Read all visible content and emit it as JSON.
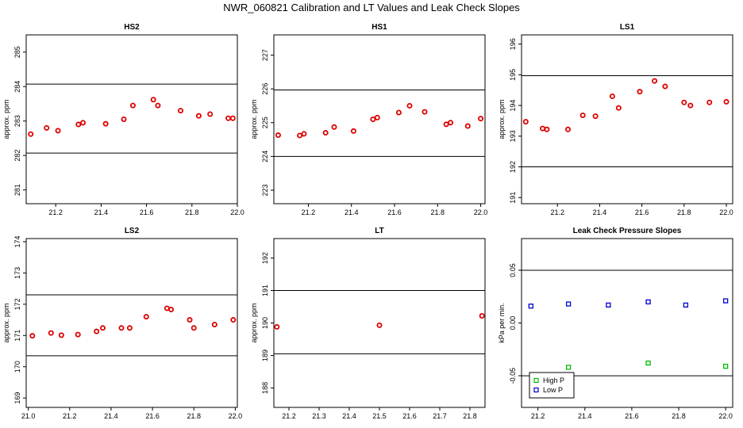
{
  "title": "NWR_060821  Calibration and LT Values and Leak Check Slopes",
  "chart_data": [
    {
      "type": "scatter",
      "title": "HS2",
      "ylabel": "approx. ppm",
      "xlim": [
        21.07,
        22.0
      ],
      "ylim": [
        280.6,
        285.5
      ],
      "xticks": [
        "21.2",
        "21.4",
        "21.6",
        "21.8",
        "22.0"
      ],
      "yticks": [
        "281",
        "282",
        "283",
        "284",
        "285"
      ],
      "hlines": [
        282.07,
        284.07
      ],
      "series": [
        {
          "color": "#dd0000",
          "symbol": "circle",
          "x": [
            21.09,
            21.16,
            21.21,
            21.3,
            21.32,
            21.42,
            21.5,
            21.54,
            21.63,
            21.65,
            21.75,
            21.83,
            21.88,
            21.96,
            21.98
          ],
          "y": [
            282.62,
            282.8,
            282.72,
            282.9,
            282.95,
            282.92,
            283.05,
            283.45,
            283.62,
            283.45,
            283.3,
            283.15,
            283.2,
            283.08,
            283.08
          ]
        }
      ]
    },
    {
      "type": "scatter",
      "title": "HS1",
      "ylabel": "approx. ppm",
      "xlim": [
        21.04,
        22.02
      ],
      "ylim": [
        222.6,
        227.6
      ],
      "xticks": [
        "21.2",
        "21.4",
        "21.6",
        "21.8",
        "22.0"
      ],
      "yticks": [
        "223",
        "224",
        "225",
        "226",
        "227"
      ],
      "hlines": [
        224.0,
        225.97
      ],
      "series": [
        {
          "color": "#dd0000",
          "symbol": "circle",
          "x": [
            21.06,
            21.16,
            21.18,
            21.28,
            21.32,
            21.41,
            21.5,
            21.52,
            21.62,
            21.67,
            21.74,
            21.84,
            21.86,
            21.94,
            22.0
          ],
          "y": [
            224.63,
            224.62,
            224.67,
            224.7,
            224.87,
            224.75,
            225.1,
            225.15,
            225.3,
            225.5,
            225.32,
            224.95,
            225.0,
            224.9,
            225.12
          ]
        }
      ]
    },
    {
      "type": "scatter",
      "title": "LS1",
      "ylabel": "approx. ppm",
      "xlim": [
        21.03,
        22.03
      ],
      "ylim": [
        190.8,
        196.3
      ],
      "xticks": [
        "21.2",
        "21.4",
        "21.6",
        "21.8",
        "22.0"
      ],
      "yticks": [
        "191",
        "192",
        "193",
        "194",
        "195",
        "196"
      ],
      "hlines": [
        192.0,
        194.97
      ],
      "series": [
        {
          "color": "#dd0000",
          "symbol": "circle",
          "x": [
            21.05,
            21.13,
            21.15,
            21.25,
            21.32,
            21.38,
            21.46,
            21.49,
            21.59,
            21.66,
            21.71,
            21.8,
            21.83,
            21.92,
            22.0
          ],
          "y": [
            193.47,
            193.25,
            193.22,
            193.22,
            193.68,
            193.65,
            194.3,
            193.92,
            194.45,
            194.8,
            194.62,
            194.1,
            194.0,
            194.1,
            194.12
          ]
        }
      ]
    },
    {
      "type": "scatter",
      "title": "LS2",
      "ylabel": "approx. ppm",
      "xlim": [
        20.99,
        22.01
      ],
      "ylim": [
        168.7,
        174.1
      ],
      "xticks": [
        "21.0",
        "21.2",
        "21.4",
        "21.6",
        "21.8",
        "22.0"
      ],
      "yticks": [
        "169",
        "170",
        "171",
        "172",
        "173",
        "174"
      ],
      "hlines": [
        170.35,
        172.3
      ],
      "series": [
        {
          "color": "#dd0000",
          "symbol": "circle",
          "x": [
            21.02,
            21.11,
            21.16,
            21.24,
            21.33,
            21.36,
            21.45,
            21.49,
            21.57,
            21.67,
            21.69,
            21.78,
            21.8,
            21.9,
            21.99
          ],
          "y": [
            170.99,
            171.08,
            171.01,
            171.03,
            171.13,
            171.24,
            171.24,
            171.24,
            171.6,
            171.87,
            171.83,
            171.5,
            171.24,
            171.35,
            171.5
          ]
        }
      ]
    },
    {
      "type": "scatter",
      "title": "LT",
      "ylabel": "approx. ppm",
      "xlim": [
        21.15,
        21.85
      ],
      "ylim": [
        187.4,
        192.6
      ],
      "xticks": [
        "21.2",
        "21.3",
        "21.4",
        "21.5",
        "21.6",
        "21.7",
        "21.8"
      ],
      "yticks": [
        "188",
        "189",
        "190",
        "191",
        "192"
      ],
      "hlines": [
        189.05,
        191.0
      ],
      "series": [
        {
          "color": "#dd0000",
          "symbol": "circle",
          "x": [
            21.16,
            21.5,
            21.84
          ],
          "y": [
            189.88,
            189.93,
            190.22
          ]
        }
      ]
    },
    {
      "type": "scatter",
      "title": "Leak Check Pressure Slopes",
      "ylabel": "kPa per min.",
      "xlim": [
        21.13,
        22.03
      ],
      "ylim": [
        -0.08,
        0.08
      ],
      "xticks": [
        "21.2",
        "21.4",
        "21.6",
        "21.8",
        "22.0"
      ],
      "yticks": [
        "-0.05",
        "0.00",
        "0.05"
      ],
      "hlines": [
        -0.05,
        0.05
      ],
      "legend_position": "bottom-left",
      "series": [
        {
          "name": "High P",
          "color": "#00bb00",
          "symbol": "square",
          "x": [
            21.33,
            21.67,
            22.0
          ],
          "y": [
            -0.042,
            -0.038,
            -0.041
          ]
        },
        {
          "name": "Low P",
          "color": "#0000cc",
          "symbol": "square",
          "x": [
            21.17,
            21.33,
            21.5,
            21.67,
            21.83,
            22.0
          ],
          "y": [
            0.016,
            0.018,
            0.017,
            0.02,
            0.017,
            0.021
          ]
        }
      ]
    }
  ]
}
